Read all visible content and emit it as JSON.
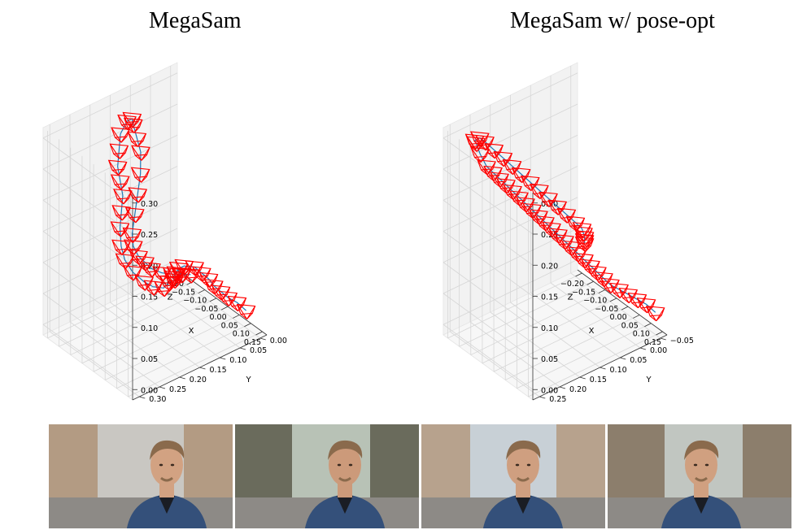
{
  "titles": {
    "left": "MegaSam",
    "right": "MegaSam w/ pose-opt"
  },
  "chart_data": [
    {
      "type": "line",
      "title": "MegaSam",
      "xlabel": "X",
      "ylabel": "Y",
      "zlabel": "Z",
      "xlim": [
        -0.2,
        0.15
      ],
      "ylim": [
        -0.02,
        0.32
      ],
      "zlim": [
        -0.01,
        0.32
      ],
      "xticks": [
        "−0.20",
        "−0.15",
        "−0.10",
        "−0.05",
        "0.00",
        "0.05",
        "0.10",
        "0.15"
      ],
      "yticks": [
        "0.00",
        "0.05",
        "0.10",
        "0.15",
        "0.20",
        "0.25",
        "0.30"
      ],
      "zticks": [
        "0.00",
        "0.05",
        "0.10",
        "0.15",
        "0.20",
        "0.25",
        "0.30"
      ],
      "series": [
        {
          "color": "#1f77b4",
          "camera_color": "#ff0000",
          "points": [
            [
              0.1,
              0.0,
              0.02
            ],
            [
              0.08,
              0.01,
              0.03
            ],
            [
              0.06,
              0.02,
              0.035
            ],
            [
              0.04,
              0.025,
              0.04
            ],
            [
              0.02,
              0.03,
              0.045
            ],
            [
              0.0,
              0.03,
              0.05
            ],
            [
              -0.02,
              0.035,
              0.055
            ],
            [
              -0.04,
              0.04,
              0.06
            ],
            [
              -0.05,
              0.06,
              0.065
            ],
            [
              -0.04,
              0.08,
              0.07
            ],
            [
              -0.02,
              0.1,
              0.075
            ],
            [
              0.0,
              0.12,
              0.08
            ],
            [
              0.02,
              0.13,
              0.085
            ],
            [
              0.03,
              0.15,
              0.09
            ],
            [
              0.04,
              0.17,
              0.09
            ],
            [
              0.03,
              0.19,
              0.095
            ],
            [
              0.01,
              0.2,
              0.1
            ],
            [
              -0.02,
              0.21,
              0.11
            ],
            [
              -0.05,
              0.21,
              0.12
            ],
            [
              -0.08,
              0.2,
              0.13
            ],
            [
              -0.1,
              0.19,
              0.15
            ],
            [
              -0.11,
              0.18,
              0.17
            ],
            [
              -0.12,
              0.17,
              0.19
            ],
            [
              -0.13,
              0.17,
              0.21
            ],
            [
              -0.14,
              0.17,
              0.23
            ],
            [
              -0.15,
              0.16,
              0.25
            ],
            [
              -0.16,
              0.15,
              0.27
            ],
            [
              -0.15,
              0.14,
              0.29
            ],
            [
              -0.13,
              0.14,
              0.3
            ],
            [
              -0.11,
              0.15,
              0.3
            ],
            [
              -0.08,
              0.16,
              0.29
            ],
            [
              -0.05,
              0.17,
              0.28
            ],
            [
              -0.02,
              0.19,
              0.26
            ],
            [
              0.0,
              0.21,
              0.24
            ],
            [
              0.02,
              0.23,
              0.22
            ],
            [
              0.04,
              0.25,
              0.2
            ],
            [
              0.06,
              0.26,
              0.19
            ],
            [
              0.08,
              0.26,
              0.18
            ],
            [
              0.09,
              0.25,
              0.17
            ],
            [
              0.1,
              0.24,
              0.16
            ],
            [
              0.11,
              0.22,
              0.15
            ],
            [
              0.12,
              0.2,
              0.145
            ],
            [
              0.125,
              0.18,
              0.14
            ],
            [
              0.13,
              0.16,
              0.135
            ]
          ]
        }
      ]
    },
    {
      "type": "line",
      "title": "MegaSam w/ pose-opt",
      "xlabel": "X",
      "ylabel": "Y",
      "zlabel": "Z",
      "xlim": [
        -0.2,
        0.15
      ],
      "ylim": [
        -0.07,
        0.27
      ],
      "zlim": [
        -0.01,
        0.32
      ],
      "xticks": [
        "−0.20",
        "−0.15",
        "−0.10",
        "−0.05",
        "0.00",
        "0.05",
        "0.10",
        "0.15"
      ],
      "yticks": [
        "−0.05",
        "0.00",
        "0.05",
        "0.10",
        "0.15",
        "0.20",
        "0.25"
      ],
      "zticks": [
        "0.00",
        "0.05",
        "0.10",
        "0.15",
        "0.20",
        "0.25",
        "0.30"
      ],
      "series": [
        {
          "color": "#1f77b4",
          "camera_color": "#ff0000",
          "points": [
            [
              0.12,
              -0.06,
              0.02
            ],
            [
              0.1,
              -0.05,
              0.03
            ],
            [
              0.08,
              -0.04,
              0.035
            ],
            [
              0.06,
              -0.03,
              0.04
            ],
            [
              0.04,
              -0.02,
              0.045
            ],
            [
              0.02,
              -0.01,
              0.05
            ],
            [
              0.01,
              0.0,
              0.06
            ],
            [
              0.0,
              0.01,
              0.07
            ],
            [
              -0.01,
              0.02,
              0.08
            ],
            [
              -0.02,
              0.03,
              0.09
            ],
            [
              -0.03,
              0.04,
              0.1
            ],
            [
              -0.04,
              0.05,
              0.11
            ],
            [
              -0.05,
              0.06,
              0.12
            ],
            [
              -0.06,
              0.07,
              0.13
            ],
            [
              -0.07,
              0.08,
              0.14
            ],
            [
              -0.08,
              0.09,
              0.15
            ],
            [
              -0.09,
              0.1,
              0.16
            ],
            [
              -0.1,
              0.11,
              0.17
            ],
            [
              -0.11,
              0.12,
              0.18
            ],
            [
              -0.12,
              0.13,
              0.19
            ],
            [
              -0.13,
              0.14,
              0.2
            ],
            [
              -0.14,
              0.15,
              0.21
            ],
            [
              -0.15,
              0.16,
              0.22
            ],
            [
              -0.16,
              0.17,
              0.23
            ],
            [
              -0.17,
              0.18,
              0.24
            ],
            [
              -0.18,
              0.19,
              0.26
            ],
            [
              -0.18,
              0.2,
              0.28
            ],
            [
              -0.17,
              0.21,
              0.29
            ],
            [
              -0.15,
              0.21,
              0.3
            ],
            [
              -0.13,
              0.21,
              0.3
            ],
            [
              -0.11,
              0.2,
              0.29
            ],
            [
              -0.09,
              0.19,
              0.28
            ],
            [
              -0.07,
              0.18,
              0.27
            ],
            [
              -0.05,
              0.17,
              0.26
            ],
            [
              -0.03,
              0.16,
              0.25
            ],
            [
              -0.01,
              0.15,
              0.24
            ],
            [
              0.01,
              0.14,
              0.23
            ],
            [
              0.03,
              0.13,
              0.22
            ],
            [
              0.05,
              0.12,
              0.21
            ],
            [
              0.07,
              0.11,
              0.2
            ],
            [
              0.08,
              0.1,
              0.19
            ],
            [
              0.085,
              0.1,
              0.185
            ],
            [
              0.09,
              0.1,
              0.18
            ],
            [
              0.09,
              0.1,
              0.175
            ],
            [
              0.09,
              0.1,
              0.17
            ]
          ]
        }
      ]
    }
  ],
  "photos": [
    {
      "sky": "#c9c7c2",
      "bldg": "#b39b83",
      "jacket": "#34507a",
      "skin": "#d2a282",
      "hair": "#8a6a4c"
    },
    {
      "sky": "#b8c2b6",
      "bldg": "#6a6b5c",
      "jacket": "#34507a",
      "skin": "#cc9a7a",
      "hair": "#8a6a4c"
    },
    {
      "sky": "#c8d0d6",
      "bldg": "#b7a28d",
      "jacket": "#34507a",
      "skin": "#cf9f80",
      "hair": "#8a6a4c"
    },
    {
      "sky": "#c1c6c1",
      "bldg": "#8c7e6c",
      "jacket": "#34507a",
      "skin": "#d0a080",
      "hair": "#8a6a4c"
    }
  ]
}
